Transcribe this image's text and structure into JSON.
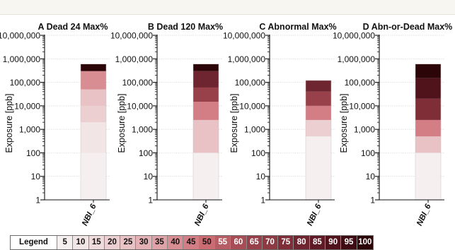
{
  "chart_data": {
    "type": "bar",
    "scale": "log",
    "ylim": [
      1,
      10000000
    ],
    "y_tick_labels": [
      "1",
      "10",
      "100",
      "1,000",
      "10,000",
      "100,000",
      "1,000,000",
      "10,000,000"
    ],
    "ylabel": "Exposure [ppb]",
    "grid": true,
    "panels": [
      {
        "title": "A Dead 24 Max%",
        "category": "NBI_6",
        "segments": [
          {
            "from": 1,
            "to": 100,
            "percent": 5
          },
          {
            "from": 100,
            "to": 2000,
            "percent": 10
          },
          {
            "from": 2000,
            "to": 10000,
            "percent": 20
          },
          {
            "from": 10000,
            "to": 50000,
            "percent": 25
          },
          {
            "from": 50000,
            "to": 300000,
            "percent": 40
          },
          {
            "from": 300000,
            "to": 600000,
            "percent": 100
          }
        ]
      },
      {
        "title": "B Dead 120 Max%",
        "category": "NBI_6",
        "segments": [
          {
            "from": 1,
            "to": 100,
            "percent": 5
          },
          {
            "from": 100,
            "to": 2500,
            "percent": 25
          },
          {
            "from": 2500,
            "to": 15000,
            "percent": 45
          },
          {
            "from": 15000,
            "to": 60000,
            "percent": 65
          },
          {
            "from": 60000,
            "to": 300000,
            "percent": 80
          },
          {
            "from": 300000,
            "to": 600000,
            "percent": 100
          }
        ]
      },
      {
        "title": "C Abnormal Max%",
        "category": "NBI_6",
        "segments": [
          {
            "from": 1,
            "to": 500,
            "percent": 5
          },
          {
            "from": 500,
            "to": 2500,
            "percent": 20
          },
          {
            "from": 2500,
            "to": 10000,
            "percent": 45
          },
          {
            "from": 10000,
            "to": 40000,
            "percent": 65
          },
          {
            "from": 40000,
            "to": 120000,
            "percent": 80
          }
        ]
      },
      {
        "title": "D Abn-or-Dead Max%",
        "category": "NBI_6",
        "segments": [
          {
            "from": 1,
            "to": 100,
            "percent": 5
          },
          {
            "from": 100,
            "to": 500,
            "percent": 25
          },
          {
            "from": 500,
            "to": 2500,
            "percent": 45
          },
          {
            "from": 2500,
            "to": 20000,
            "percent": 75
          },
          {
            "from": 20000,
            "to": 150000,
            "percent": 90
          },
          {
            "from": 150000,
            "to": 600000,
            "percent": 100
          }
        ]
      }
    ],
    "legend": {
      "title": "Legend",
      "values": [
        5,
        10,
        15,
        20,
        25,
        30,
        35,
        40,
        45,
        50,
        55,
        60,
        65,
        70,
        75,
        80,
        85,
        90,
        95,
        100
      ],
      "colors": [
        "#f5f0ef",
        "#f2e5e5",
        "#efdbdb",
        "#ecd0d1",
        "#e8c2c4",
        "#e4b1b4",
        "#dfa2a6",
        "#d88d92",
        "#d27e84",
        "#cb6c73",
        "#b75d65",
        "#a84c55",
        "#99414b",
        "#8d3a43",
        "#7f2e38",
        "#6f2530",
        "#5e1b25",
        "#50131c",
        "#3f0c13",
        "#2b0508"
      ]
    }
  }
}
